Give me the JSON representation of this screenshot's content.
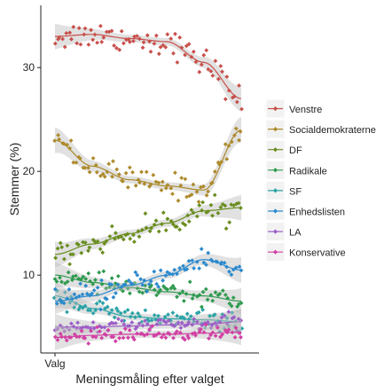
{
  "chart_data": {
    "type": "scatter",
    "title": "",
    "xlabel": "Meningsmåling efter valget",
    "ylabel": "Stemmer (%)",
    "x_tick_labels": [
      "Valg"
    ],
    "y_ticks": [
      10,
      20,
      30
    ],
    "ylim": [
      2.5,
      36
    ],
    "grid": false,
    "legend_position": "right",
    "smoothing": "loess trend line with grey confidence band per series",
    "series": [
      {
        "name": "Venstre",
        "color": "#c8504b",
        "start": 33.0,
        "end": 27.0,
        "trend": [
          33,
          33.2,
          32.8,
          32.5,
          30.5,
          27.0
        ],
        "noise": 1.2
      },
      {
        "name": "Socialdemokraterne",
        "color": "#ad8a2c",
        "start": 23.0,
        "end": 24.0,
        "trend": [
          23,
          20.5,
          19.2,
          18.6,
          18.2,
          24.0
        ],
        "noise": 1.1
      },
      {
        "name": "DF",
        "color": "#698d1e",
        "start": 12.0,
        "end": 16.5,
        "trend": [
          12.0,
          13.0,
          14.0,
          15.0,
          16.2,
          16.5
        ],
        "noise": 1.0
      },
      {
        "name": "Radikale",
        "color": "#2e9a4e",
        "start": 10.0,
        "end": 7.5,
        "trend": [
          10.0,
          9.3,
          8.8,
          8.4,
          8.0,
          7.5
        ],
        "noise": 0.8
      },
      {
        "name": "SF",
        "color": "#2ba3a6",
        "start": 8.0,
        "end": 5.5,
        "trend": [
          8.0,
          6.8,
          6.0,
          5.8,
          5.7,
          5.5
        ],
        "noise": 0.8
      },
      {
        "name": "Enhedslisten",
        "color": "#2b8acd",
        "start": 7.5,
        "end": 10.5,
        "trend": [
          7.5,
          8.0,
          9.0,
          10.0,
          11.5,
          10.5
        ],
        "noise": 1.0
      },
      {
        "name": "LA",
        "color": "#9d5fc7",
        "start": 5.0,
        "end": 5.5,
        "trend": [
          5.0,
          5.0,
          5.1,
          5.2,
          5.3,
          5.5
        ],
        "noise": 0.6
      },
      {
        "name": "Konservative",
        "color": "#d23fa3",
        "start": 4.0,
        "end": 4.5,
        "trend": [
          4.0,
          4.2,
          4.3,
          4.3,
          4.4,
          4.5
        ],
        "noise": 0.6
      }
    ],
    "points_per_series": 80
  }
}
